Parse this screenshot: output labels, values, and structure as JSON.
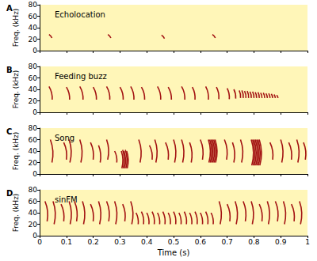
{
  "chart_data": [
    {
      "type": "spectrogram",
      "title": "Echolocation",
      "annotations": [
        "A"
      ],
      "ylabel": "Freq. (kHz)",
      "color": "#a31212",
      "xlim": [
        0,
        1
      ],
      "xticks": [
        0,
        0.1,
        0.2,
        0.3,
        0.4,
        0.5,
        0.6,
        0.7,
        0.8,
        0.9,
        1
      ],
      "ylim": [
        0,
        80
      ],
      "yticks": [
        0,
        20,
        40,
        60,
        80
      ],
      "grid": false,
      "tick_labels": "y",
      "calls": [
        [
          0.035,
          28,
          0.046,
          22
        ],
        [
          0.255,
          28,
          0.266,
          22
        ],
        [
          0.455,
          27,
          0.466,
          21
        ],
        [
          0.645,
          28,
          0.656,
          22
        ]
      ]
    },
    {
      "type": "spectrogram",
      "title": "Feeding buzz",
      "annotations": [
        "B"
      ],
      "ylabel": "Freq. (kHz)",
      "color": "#a31212",
      "xlim": [
        0,
        1
      ],
      "xticks": [
        0,
        0.1,
        0.2,
        0.3,
        0.4,
        0.5,
        0.6,
        0.7,
        0.8,
        0.9,
        1
      ],
      "ylim": [
        0,
        80
      ],
      "yticks": [
        0,
        20,
        40,
        60,
        80
      ],
      "grid": false,
      "tick_labels": "y",
      "calls": [
        [
          0.035,
          45,
          0.047,
          22
        ],
        [
          0.1,
          44,
          0.112,
          22
        ],
        [
          0.15,
          45,
          0.162,
          22
        ],
        [
          0.2,
          44,
          0.212,
          22
        ],
        [
          0.25,
          45,
          0.262,
          22
        ],
        [
          0.3,
          44,
          0.312,
          22
        ],
        [
          0.34,
          45,
          0.352,
          22
        ],
        [
          0.38,
          44,
          0.392,
          22
        ],
        [
          0.44,
          45,
          0.452,
          22
        ],
        [
          0.48,
          44,
          0.492,
          22
        ],
        [
          0.53,
          45,
          0.542,
          22
        ],
        [
          0.57,
          44,
          0.58,
          22
        ],
        [
          0.62,
          45,
          0.63,
          22
        ],
        [
          0.66,
          44,
          0.669,
          23
        ],
        [
          0.7,
          42,
          0.708,
          23
        ],
        [
          0.725,
          40,
          0.732,
          24
        ],
        [
          0.745,
          38,
          0.75,
          25
        ],
        [
          0.755,
          38,
          0.76,
          25
        ],
        [
          0.765,
          37,
          0.77,
          25
        ],
        [
          0.775,
          37,
          0.78,
          25
        ],
        [
          0.785,
          36,
          0.79,
          25
        ],
        [
          0.795,
          36,
          0.8,
          25
        ],
        [
          0.805,
          35,
          0.81,
          25
        ],
        [
          0.815,
          35,
          0.82,
          25
        ],
        [
          0.825,
          34,
          0.83,
          25
        ],
        [
          0.835,
          34,
          0.84,
          25
        ],
        [
          0.845,
          33,
          0.85,
          25
        ],
        [
          0.855,
          33,
          0.86,
          25
        ],
        [
          0.865,
          32,
          0.87,
          25
        ],
        [
          0.875,
          31,
          0.88,
          25
        ],
        [
          0.885,
          30,
          0.89,
          25
        ]
      ]
    },
    {
      "type": "spectrogram",
      "title": "Song",
      "annotations": [
        "C"
      ],
      "ylabel": "Freq. (kHz)",
      "color": "#a31212",
      "xlim": [
        0,
        1
      ],
      "xticks": [
        0,
        0.1,
        0.2,
        0.3,
        0.4,
        0.5,
        0.6,
        0.7,
        0.8,
        0.9,
        1
      ],
      "ylim": [
        0,
        80
      ],
      "yticks": [
        0,
        20,
        40,
        60,
        80
      ],
      "grid": false,
      "tick_labels": "y",
      "calls": [
        [
          0.04,
          60,
          0.046,
          20
        ],
        [
          0.09,
          55,
          0.1,
          25
        ],
        [
          0.11,
          60,
          0.113,
          20
        ],
        [
          0.15,
          60,
          0.154,
          20
        ],
        [
          0.19,
          55,
          0.2,
          25
        ],
        [
          0.22,
          50,
          0.226,
          20
        ],
        [
          0.25,
          60,
          0.254,
          25
        ],
        [
          0.28,
          40,
          0.288,
          20
        ],
        [
          0.305,
          40,
          0.307,
          10
        ],
        [
          0.31,
          42,
          0.312,
          10
        ],
        [
          0.315,
          40,
          0.317,
          10
        ],
        [
          0.32,
          42,
          0.322,
          10
        ],
        [
          0.325,
          40,
          0.327,
          10
        ],
        [
          0.37,
          60,
          0.375,
          20
        ],
        [
          0.41,
          50,
          0.42,
          25
        ],
        [
          0.43,
          60,
          0.434,
          20
        ],
        [
          0.47,
          55,
          0.48,
          25
        ],
        [
          0.5,
          60,
          0.504,
          20
        ],
        [
          0.53,
          60,
          0.534,
          20
        ],
        [
          0.56,
          55,
          0.566,
          20
        ],
        [
          0.6,
          60,
          0.608,
          25
        ],
        [
          0.63,
          60,
          0.632,
          20
        ],
        [
          0.635,
          60,
          0.637,
          20
        ],
        [
          0.64,
          60,
          0.642,
          20
        ],
        [
          0.645,
          60,
          0.647,
          20
        ],
        [
          0.65,
          60,
          0.652,
          20
        ],
        [
          0.655,
          60,
          0.657,
          20
        ],
        [
          0.69,
          60,
          0.698,
          25
        ],
        [
          0.72,
          55,
          0.725,
          20
        ],
        [
          0.75,
          60,
          0.754,
          20
        ],
        [
          0.79,
          60,
          0.792,
          15
        ],
        [
          0.795,
          60,
          0.797,
          15
        ],
        [
          0.8,
          60,
          0.802,
          15
        ],
        [
          0.805,
          60,
          0.807,
          15
        ],
        [
          0.81,
          60,
          0.812,
          15
        ],
        [
          0.815,
          60,
          0.817,
          15
        ],
        [
          0.82,
          60,
          0.822,
          15
        ],
        [
          0.86,
          55,
          0.87,
          25
        ],
        [
          0.9,
          60,
          0.904,
          20
        ],
        [
          0.93,
          55,
          0.94,
          25
        ],
        [
          0.96,
          60,
          0.964,
          20
        ],
        [
          0.985,
          55,
          0.992,
          25
        ]
      ]
    },
    {
      "type": "spectrogram",
      "title": "sinFM",
      "annotations": [
        "D"
      ],
      "xlabel": "Time (s)",
      "ylabel": "Freq. (kHz)",
      "color": "#a31212",
      "xlim": [
        0,
        1
      ],
      "xticks": [
        0,
        0.1,
        0.2,
        0.3,
        0.4,
        0.5,
        0.6,
        0.7,
        0.8,
        0.9,
        1
      ],
      "ylim": [
        0,
        80
      ],
      "yticks": [
        0,
        20,
        40,
        60,
        80
      ],
      "grid": false,
      "calls": [
        [
          0.02,
          60,
          0.028,
          25
        ],
        [
          0.05,
          60,
          0.054,
          20
        ],
        [
          0.08,
          55,
          0.09,
          25
        ],
        [
          0.11,
          60,
          0.114,
          20
        ],
        [
          0.13,
          60,
          0.138,
          25
        ],
        [
          0.16,
          60,
          0.164,
          20
        ],
        [
          0.19,
          55,
          0.2,
          25
        ],
        [
          0.22,
          60,
          0.224,
          20
        ],
        [
          0.25,
          60,
          0.258,
          25
        ],
        [
          0.28,
          60,
          0.284,
          20
        ],
        [
          0.31,
          55,
          0.318,
          25
        ],
        [
          0.34,
          60,
          0.344,
          20
        ],
        [
          0.36,
          40,
          0.368,
          20
        ],
        [
          0.38,
          42,
          0.388,
          20
        ],
        [
          0.4,
          40,
          0.408,
          20
        ],
        [
          0.42,
          42,
          0.428,
          20
        ],
        [
          0.44,
          40,
          0.448,
          20
        ],
        [
          0.46,
          42,
          0.468,
          20
        ],
        [
          0.48,
          40,
          0.488,
          20
        ],
        [
          0.5,
          42,
          0.508,
          20
        ],
        [
          0.52,
          40,
          0.528,
          20
        ],
        [
          0.54,
          42,
          0.548,
          20
        ],
        [
          0.56,
          40,
          0.568,
          20
        ],
        [
          0.58,
          42,
          0.588,
          20
        ],
        [
          0.6,
          40,
          0.608,
          20
        ],
        [
          0.62,
          42,
          0.628,
          20
        ],
        [
          0.64,
          40,
          0.648,
          20
        ],
        [
          0.67,
          60,
          0.674,
          20
        ],
        [
          0.7,
          55,
          0.71,
          25
        ],
        [
          0.73,
          60,
          0.734,
          20
        ],
        [
          0.76,
          60,
          0.768,
          25
        ],
        [
          0.79,
          60,
          0.794,
          20
        ],
        [
          0.82,
          55,
          0.83,
          25
        ],
        [
          0.85,
          60,
          0.854,
          20
        ],
        [
          0.88,
          60,
          0.888,
          25
        ],
        [
          0.91,
          60,
          0.914,
          20
        ],
        [
          0.94,
          55,
          0.95,
          25
        ],
        [
          0.97,
          60,
          0.974,
          20
        ]
      ]
    }
  ]
}
